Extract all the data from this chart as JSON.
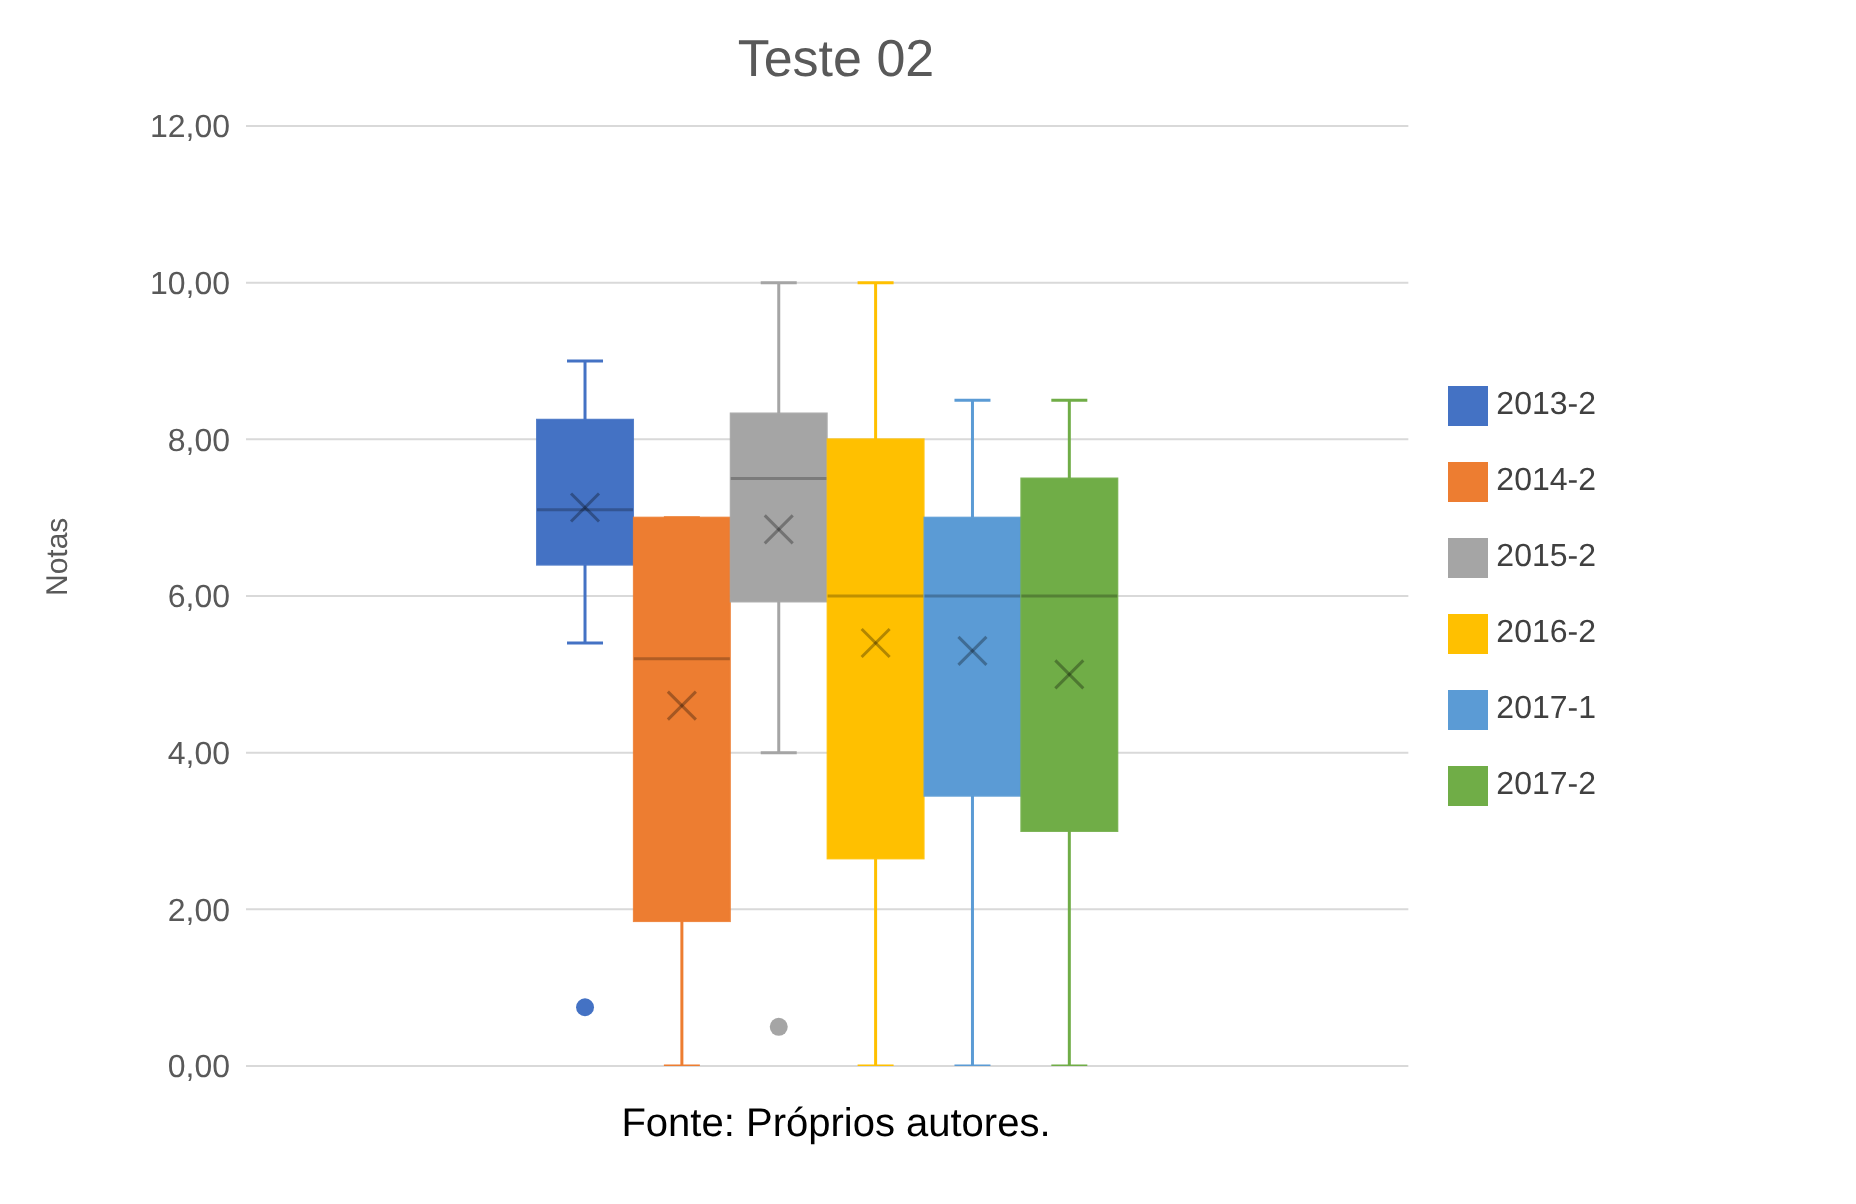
{
  "chart_data": {
    "type": "box",
    "title": "Teste 02",
    "ylabel": "Notas",
    "categories": [
      null
    ],
    "ylim": [
      0,
      12
    ],
    "yticks": [
      {
        "value": 0,
        "label": "0,00"
      },
      {
        "value": 2,
        "label": "2,00"
      },
      {
        "value": 4,
        "label": "4,00"
      },
      {
        "value": 6,
        "label": "6,00"
      },
      {
        "value": 8,
        "label": "8,00"
      },
      {
        "value": 10,
        "label": "10,00"
      },
      {
        "value": 12,
        "label": "12,00"
      }
    ],
    "grid": "y",
    "legend": "right",
    "annotations": [
      "Fonte: Próprios autores."
    ],
    "series": [
      {
        "name": "2013-2",
        "color": "#4472c4",
        "boxes": [
          {
            "low": 5.4,
            "q1": 6.4,
            "median": 7.1,
            "q3": 8.25,
            "high": 9,
            "mean": 7.13,
            "outliers": [
              0.75
            ]
          }
        ]
      },
      {
        "name": "2014-2",
        "color": "#ed7d31",
        "boxes": [
          {
            "low": 0,
            "q1": 1.85,
            "median": 5.2,
            "q3": 7,
            "high": 7,
            "mean": 4.6
          }
        ]
      },
      {
        "name": "2015-2",
        "color": "#a5a5a5",
        "boxes": [
          {
            "low": 4,
            "q1": 5.93,
            "median": 7.5,
            "q3": 8.33,
            "high": 10,
            "mean": 6.85,
            "outliers": [
              0.5
            ]
          }
        ]
      },
      {
        "name": "2016-2",
        "color": "#ffc000",
        "boxes": [
          {
            "low": 0,
            "q1": 2.65,
            "median": 6,
            "q3": 8,
            "high": 10,
            "mean": 5.4
          }
        ]
      },
      {
        "name": "2017-1",
        "color": "#5b9bd5",
        "boxes": [
          {
            "low": 0,
            "q1": 3.45,
            "median": 6,
            "q3": 7,
            "high": 8.5,
            "mean": 5.3
          }
        ]
      },
      {
        "name": "2017-2",
        "color": "#70ad47",
        "boxes": [
          {
            "low": 0,
            "q1": 3,
            "median": 6,
            "q3": 7.5,
            "high": 8.5,
            "mean": 5
          }
        ]
      }
    ]
  }
}
